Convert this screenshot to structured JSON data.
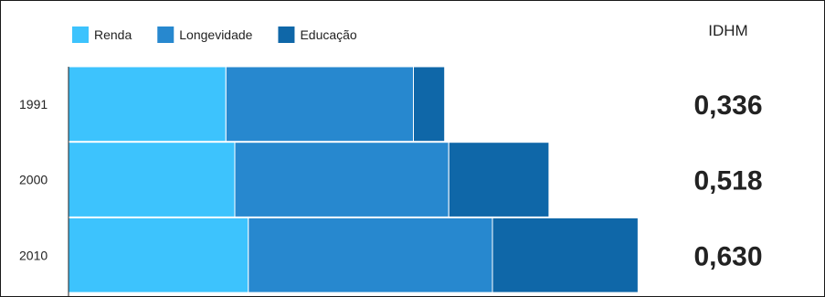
{
  "chart_data": {
    "type": "bar",
    "orientation": "horizontal",
    "stacked": true,
    "categories": [
      "1991",
      "2000",
      "2010"
    ],
    "series": [
      {
        "name": "Renda",
        "color": "#3dc3fd",
        "values": [
          0.267,
          0.282,
          0.305
        ]
      },
      {
        "name": "Longevidade",
        "color": "#2788cf",
        "values": [
          0.318,
          0.363,
          0.414
        ]
      },
      {
        "name": "Educação",
        "color": "#0f67a8",
        "values": [
          0.053,
          0.17,
          0.247
        ]
      }
    ],
    "xlim": [
      0,
      1.28
    ],
    "legend_position": "top-left",
    "grid": false,
    "idhm": {
      "header": "IDHM",
      "values": [
        "0,336",
        "0,518",
        "0,630"
      ]
    }
  }
}
